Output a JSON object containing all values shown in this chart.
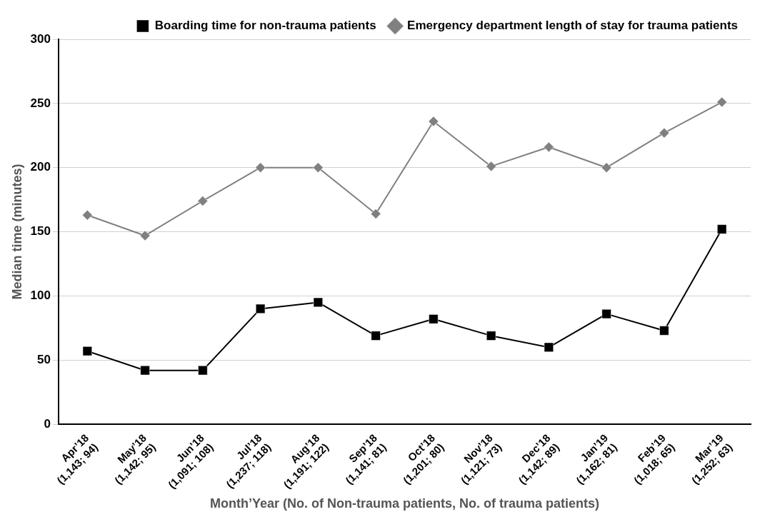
{
  "chart_data": {
    "type": "line",
    "xlabel": "Month’Year (No. of Non-trauma patients, No. of trauma patients)",
    "ylabel": "Median time (minutes)",
    "categories": [
      "Apr’18\n(1,143; 94)",
      "May’18\n(1,142; 95)",
      "Jun’18\n(1,091; 108)",
      "Jul’18\n(1,237; 118)",
      "Aug’18\n(1,191; 122)",
      "Sep’18\n(1,141; 81)",
      "Oct’18\n(1,201; 80)",
      "Nov’18\n(1,121; 73)",
      "Dec’18\n(1,142; 89)",
      "Jan’19\n(1,162; 81)",
      "Feb’19\n(1,018; 65)",
      "Mar’19\n(1,252; 63)"
    ],
    "series": [
      {
        "name": "Boarding time for non-trauma patients",
        "color": "#000000",
        "marker": "square",
        "values": [
          57,
          42,
          42,
          90,
          95,
          69,
          82,
          69,
          60,
          86,
          73,
          152
        ]
      },
      {
        "name": "Emergency department length of stay for trauma patients",
        "color": "#808080",
        "marker": "diamond",
        "values": [
          163,
          147,
          174,
          200,
          200,
          164,
          236,
          201,
          216,
          200,
          227,
          251
        ]
      }
    ],
    "ylim": [
      0,
      300
    ],
    "yticks": [
      0,
      50,
      100,
      150,
      200,
      250,
      300
    ],
    "grid": "y",
    "legend": "top right",
    "line_style": "solid"
  }
}
